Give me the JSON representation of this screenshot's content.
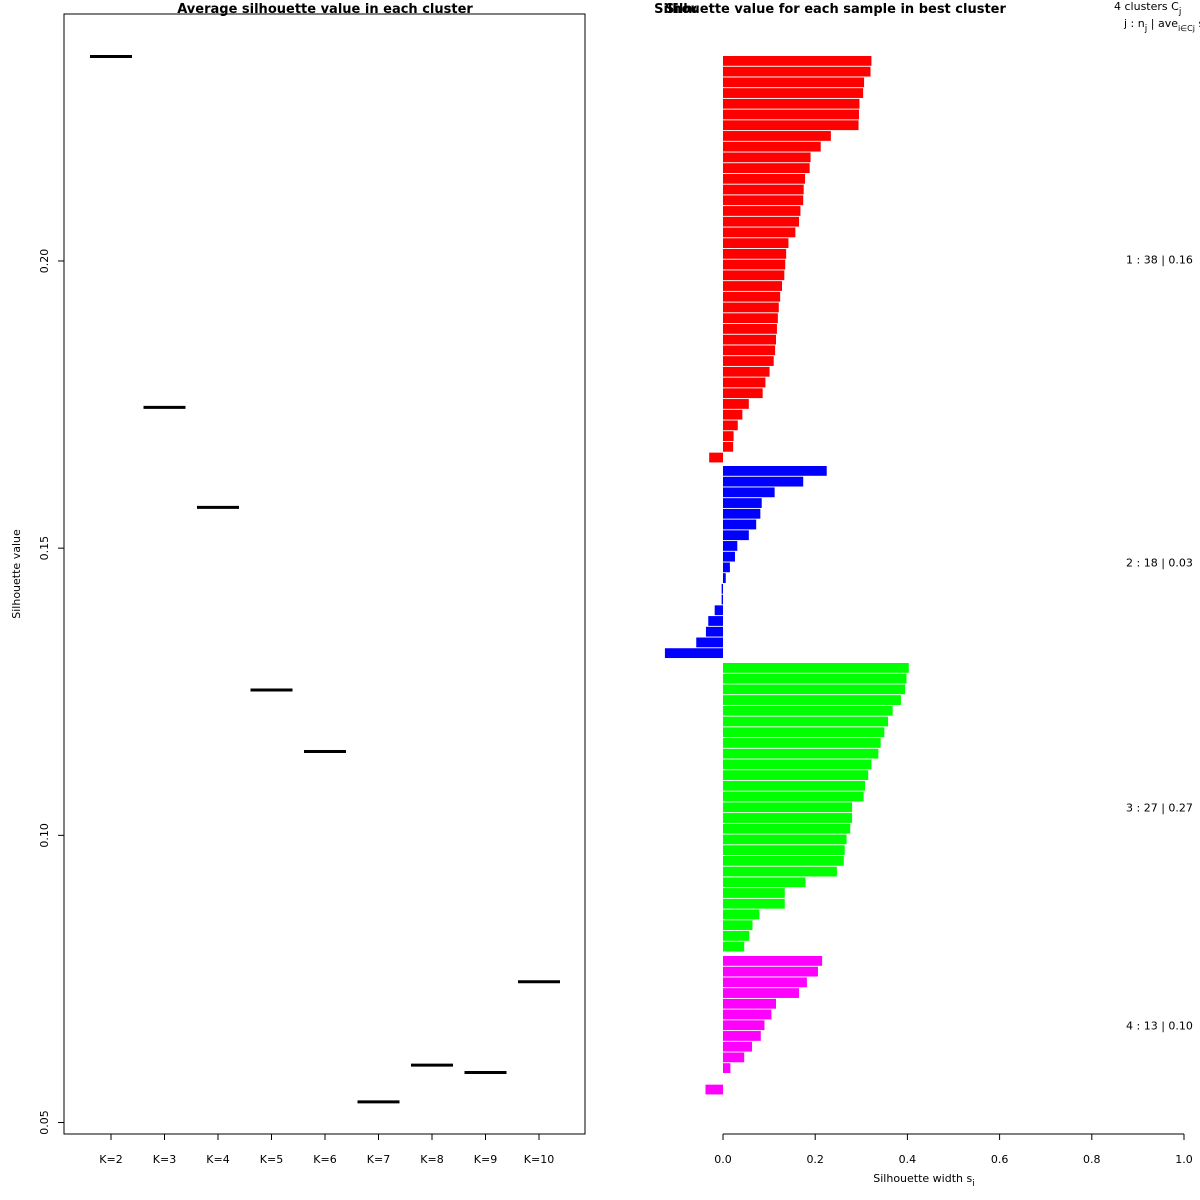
{
  "chart_data": [
    {
      "type": "scatter",
      "title": "Average silhouette value in each cluster",
      "xlabel": "",
      "ylabel": "Silhouette value",
      "categories": [
        "K=2",
        "K=3",
        "K=4",
        "K=5",
        "K=6",
        "K=7",
        "K=8",
        "K=9",
        "K=10"
      ],
      "values": [
        0.2356,
        0.1745,
        0.1571,
        0.1253,
        0.1146,
        0.0536,
        0.06,
        0.0587,
        0.0745
      ],
      "ylim": [
        0.048,
        0.243
      ],
      "yticks": [
        0.05,
        0.1,
        0.15,
        0.2
      ],
      "ytick_labels": [
        "0.05",
        "0.10",
        "0.15",
        "0.20"
      ],
      "marker": "horizontal-segment",
      "color": "#000000",
      "grid": false
    },
    {
      "type": "bar",
      "orientation": "horizontal",
      "title": "Silhouette value for each sample in best cluster",
      "title_overlap_text": "Silhouette plot of (x = cl, dist = d)",
      "xlabel": "Silhouette width s",
      "xlabel_subscript": "i",
      "xlim": [
        0,
        1.0
      ],
      "xticks": [
        0.0,
        0.2,
        0.4,
        0.6,
        0.8,
        1.0
      ],
      "xtick_labels": [
        "0.0",
        "0.2",
        "0.4",
        "0.6",
        "0.8",
        "1.0"
      ],
      "legend_header": {
        "line1": "4  clusters  C",
        "line1_sub": "j",
        "line2": "j :  n",
        "line2_sub": "j",
        "line2_rest": "  | ave",
        "line2_sub2": "i∈Cj",
        "line2_end": "  s"
      },
      "clusters": [
        {
          "name": "1",
          "label": "1 :   38  |  0.16",
          "color": "#ff0000",
          "values": [
            0.322,
            0.32,
            0.306,
            0.304,
            0.296,
            0.295,
            0.294,
            0.234,
            0.212,
            0.19,
            0.188,
            0.178,
            0.175,
            0.174,
            0.168,
            0.165,
            0.157,
            0.142,
            0.137,
            0.135,
            0.133,
            0.128,
            0.124,
            0.121,
            0.119,
            0.117,
            0.115,
            0.113,
            0.11,
            0.101,
            0.092,
            0.086,
            0.056,
            0.042,
            0.032,
            0.023,
            0.022,
            -0.03
          ]
        },
        {
          "name": "2",
          "label": "2 :   18  |  0.03",
          "color": "#0000ff",
          "values": [
            0.225,
            0.174,
            0.112,
            0.084,
            0.081,
            0.072,
            0.056,
            0.031,
            0.026,
            0.015,
            0.006,
            -0.003,
            -0.003,
            -0.018,
            -0.032,
            -0.037,
            -0.058,
            -0.126
          ]
        },
        {
          "name": "3",
          "label": "3 :   27  |  0.27",
          "color": "#00ff00",
          "values": [
            0.403,
            0.398,
            0.395,
            0.386,
            0.368,
            0.358,
            0.35,
            0.342,
            0.337,
            0.322,
            0.315,
            0.308,
            0.305,
            0.28,
            0.28,
            0.276,
            0.268,
            0.264,
            0.262,
            0.247,
            0.179,
            0.134,
            0.134,
            0.079,
            0.064,
            0.057,
            0.046
          ]
        },
        {
          "name": "4",
          "label": "4 :   13  |  0.10",
          "color": "#ff00ff",
          "values": [
            0.215,
            0.206,
            0.182,
            0.165,
            0.115,
            0.105,
            0.09,
            0.082,
            0.063,
            0.046,
            0.016,
            0.0,
            -0.038
          ]
        }
      ],
      "grid": false
    }
  ]
}
